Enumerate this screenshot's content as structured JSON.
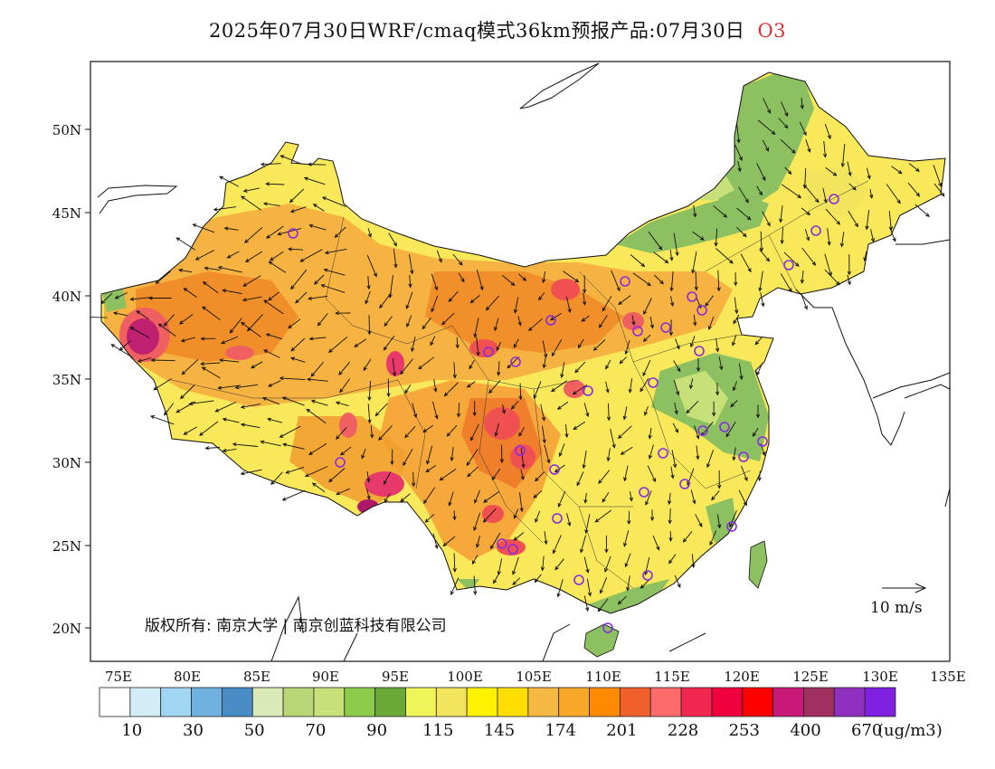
{
  "title": {
    "main": "2025年07月30日WRF/cmaq模式36km预报产品:07月30日",
    "species": "O3"
  },
  "axes": {
    "lat_ticks": [
      "50N",
      "45N",
      "40N",
      "35N",
      "30N",
      "25N",
      "20N"
    ],
    "lon_ticks": [
      "75E",
      "80E",
      "85E",
      "90E",
      "95E",
      "100E",
      "105E",
      "110E",
      "115E",
      "120E",
      "125E",
      "130E",
      "135E"
    ]
  },
  "copyright": "版权所有: 南京大学 | 南京创蓝科技有限公司",
  "wind_reference": {
    "label": "10 m/s"
  },
  "colorbar": {
    "labels": [
      "10",
      "30",
      "50",
      "70",
      "90",
      "115",
      "145",
      "174",
      "201",
      "228",
      "253",
      "400",
      "670"
    ],
    "unit": "(ug/m3)",
    "colors": [
      "#ffffff",
      "#d2ecf8",
      "#a0d6f2",
      "#6fb2df",
      "#4a8cc6",
      "#dbe8b8",
      "#b8d675",
      "#c8e07a",
      "#8ccc4a",
      "#6aa838",
      "#f0f55a",
      "#f2e45c",
      "#fff200",
      "#ffde00",
      "#f5b840",
      "#f8a828",
      "#ff8a00",
      "#f0602a",
      "#ff6a6a",
      "#f02850",
      "#f0003c",
      "#ff0000",
      "#c81878",
      "#a03060",
      "#9030c0",
      "#8020e0"
    ]
  },
  "map_colors": {
    "yellow": "#f8e85a",
    "orange": "#f8b040",
    "deep_orange": "#f08a28",
    "red": "#f05050",
    "magenta": "#b8206a",
    "green": "#8cc060",
    "light_green": "#c8e07a"
  }
}
